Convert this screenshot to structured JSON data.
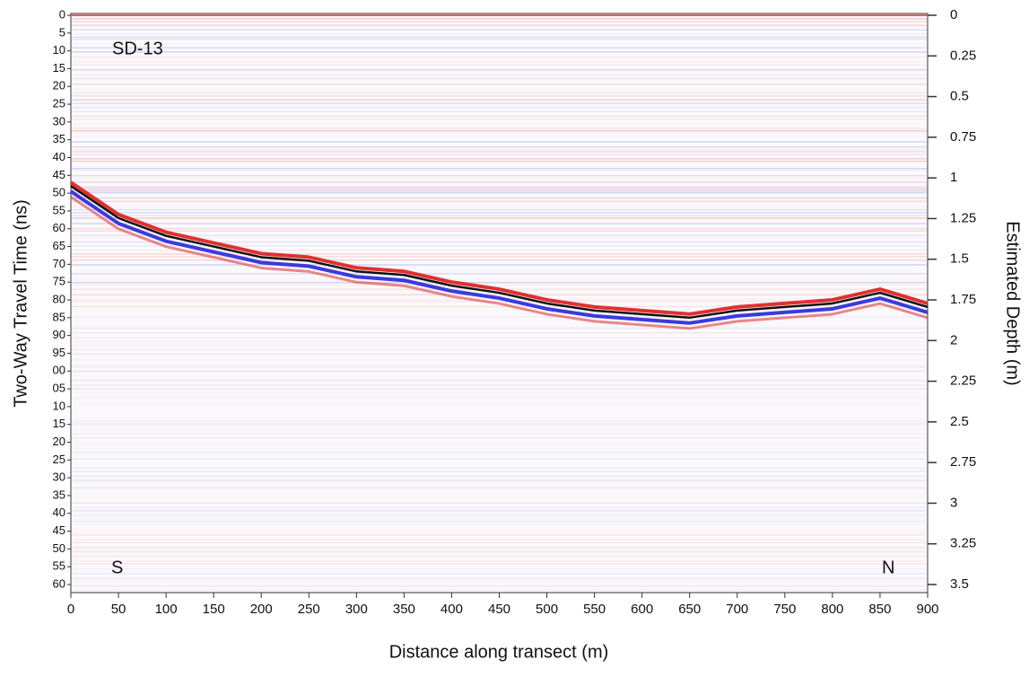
{
  "chart_data": {
    "type": "radargram",
    "annotations": [
      "SD-13",
      "S",
      "N"
    ],
    "xlabel": "Distance along transect  (m)",
    "ylabel": "Two-Way Travel Time (ns)",
    "y2label": "Estimated Depth (m)",
    "x": [
      0,
      50,
      100,
      150,
      200,
      250,
      300,
      350,
      400,
      450,
      500,
      550,
      600,
      650,
      700,
      750,
      800,
      850,
      900
    ],
    "values": [
      48,
      57,
      62,
      65,
      68,
      69,
      72,
      73,
      76,
      78,
      81,
      83,
      84,
      85,
      83,
      82,
      81,
      78,
      82
    ],
    "color": "#111111",
    "xlim": [
      0,
      900
    ],
    "xticks": [
      0,
      50,
      100,
      150,
      200,
      250,
      300,
      350,
      400,
      450,
      500,
      550,
      600,
      650,
      700,
      750,
      800,
      850,
      900
    ],
    "ylim": [
      0,
      160
    ],
    "yticks": [
      0,
      5,
      10,
      15,
      20,
      25,
      30,
      35,
      40,
      45,
      50,
      55,
      60,
      65,
      70,
      75,
      80,
      85,
      90,
      95,
      {
        "value": 100,
        "label": "00"
      },
      {
        "value": 105,
        "label": "05"
      },
      {
        "value": 110,
        "label": "10"
      },
      {
        "value": 115,
        "label": "15"
      },
      {
        "value": 120,
        "label": "20"
      },
      {
        "value": 125,
        "label": "25"
      },
      {
        "value": 130,
        "label": "30"
      },
      {
        "value": 135,
        "label": "35"
      },
      {
        "value": 140,
        "label": "40"
      },
      {
        "value": 145,
        "label": "45"
      },
      {
        "value": 150,
        "label": "50"
      },
      {
        "value": 155,
        "label": "55"
      },
      {
        "value": 160,
        "label": "60"
      }
    ],
    "y2lim": [
      0,
      3.5
    ],
    "y2ticks": [
      0,
      0.25,
      0.5,
      0.75,
      1,
      1.25,
      1.5,
      1.75,
      2,
      2.25,
      2.5,
      2.75,
      3,
      3.25,
      3.5
    ]
  }
}
